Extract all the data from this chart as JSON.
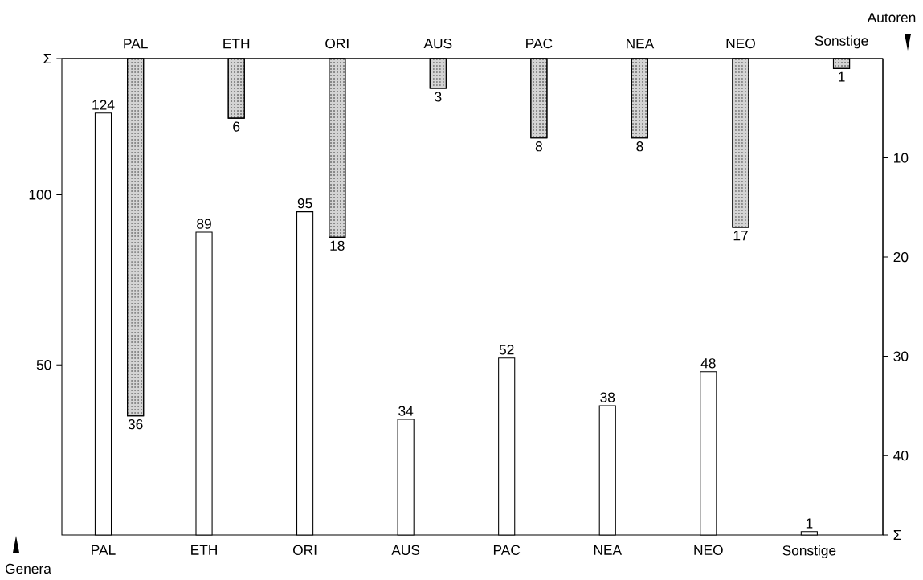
{
  "chart_data": {
    "type": "bar",
    "ylabel": "Genera",
    "y2label": "Autoren",
    "categories": [
      "PAL",
      "ETH",
      "ORI",
      "AUS",
      "PAC",
      "NEA",
      "NEO",
      "Sonstige"
    ],
    "series": [
      {
        "color": "#ffffff",
        "values": [
          124,
          89,
          95,
          34,
          52,
          38,
          48,
          1
        ]
      },
      {
        "color": "#d4d4d4",
        "axis": "y2",
        "values": [
          36,
          6,
          18,
          3,
          8,
          8,
          17,
          1
        ]
      }
    ],
    "ylim": [
      0,
      140
    ],
    "yticks": [
      50,
      100,
      {
        "value": 140,
        "label": "Σ"
      }
    ],
    "y2lim": [
      48,
      0
    ],
    "y2ticks": [
      10,
      20,
      30,
      40,
      {
        "value": 48,
        "label": "Σ"
      }
    ],
    "data_labels": true
  }
}
